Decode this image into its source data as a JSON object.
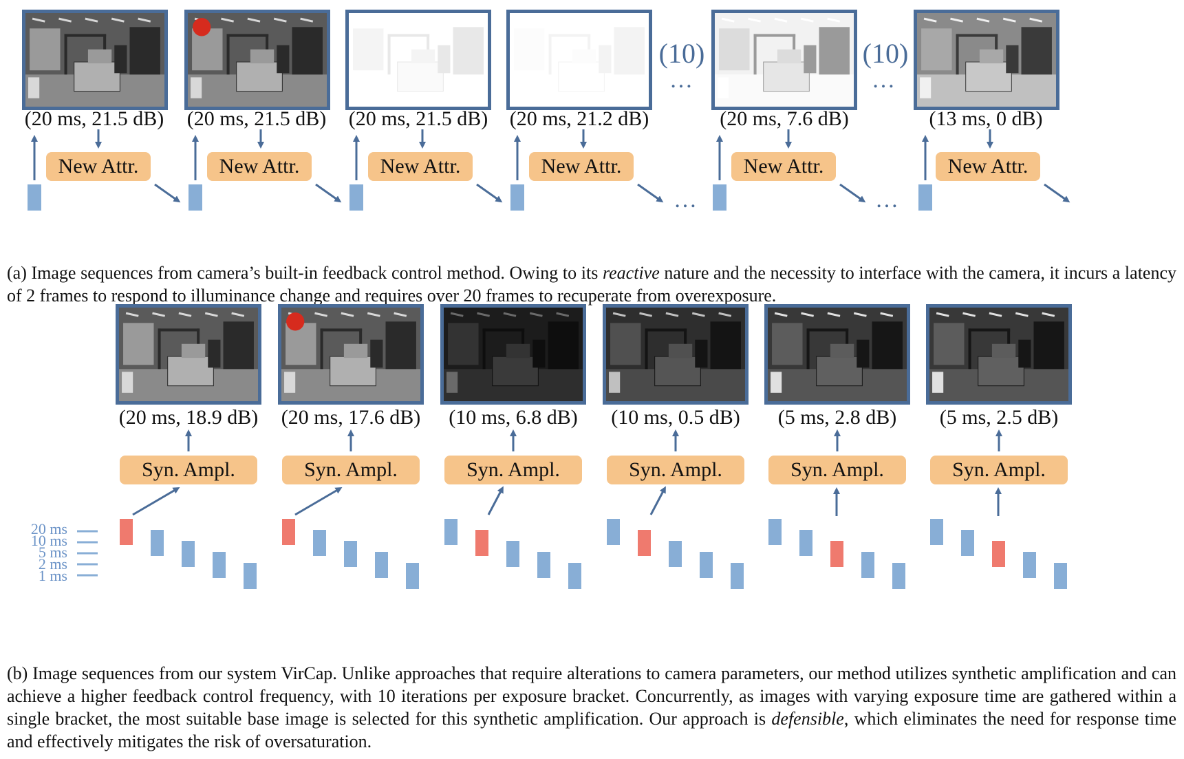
{
  "colors": {
    "frame_border": "#4a6c98",
    "arrow": "#4a6c98",
    "attr_box": "#f6c48a",
    "bar_blue": "#88aed6",
    "bar_red": "#ef7a6e",
    "red_dot": "#d62b1e"
  },
  "panel_a": {
    "frames": [
      {
        "label": "(20 ms, 21.5 dB)",
        "scene": "normal",
        "red_dot": false
      },
      {
        "label": "(20 ms, 21.5 dB)",
        "scene": "normal",
        "red_dot": true
      },
      {
        "label": "(20 ms, 21.5 dB)",
        "scene": "overexposed",
        "red_dot": false
      },
      {
        "label": "(20 ms, 21.2 dB)",
        "scene": "white",
        "red_dot": false
      },
      {
        "label": "(20 ms, 7.6 dB)",
        "scene": "overexposed-light",
        "red_dot": false
      },
      {
        "label": "(13 ms, 0 dB)",
        "scene": "bright",
        "red_dot": false
      }
    ],
    "box_label": "New Attr.",
    "gap_annotations": [
      "(10)",
      "(10)"
    ],
    "ellipsis": "…",
    "caption_prefix": "(a) Image sequences from camera’s built-in feedback control method. Owing to its ",
    "caption_emph": "reactive",
    "caption_suffix": " nature and the necessity to interface with the camera, it incurs a latency of 2 frames to respond to illuminance change and requires over 20 frames to recuperate from overexposure."
  },
  "panel_b": {
    "frames": [
      {
        "label": "(20 ms, 18.9 dB)",
        "scene": "normal",
        "red_dot": false,
        "selected_bar": 0
      },
      {
        "label": "(20 ms, 17.6 dB)",
        "scene": "normal",
        "red_dot": true,
        "selected_bar": 0
      },
      {
        "label": "(10 ms, 6.8 dB)",
        "scene": "dark",
        "red_dot": false,
        "selected_bar": 1
      },
      {
        "label": "(10 ms, 0.5 dB)",
        "scene": "dim",
        "red_dot": false,
        "selected_bar": 1
      },
      {
        "label": "(5 ms, 2.8 dB)",
        "scene": "dim2",
        "red_dot": false,
        "selected_bar": 2
      },
      {
        "label": "(5 ms, 2.5 dB)",
        "scene": "dim2",
        "red_dot": false,
        "selected_bar": 2
      }
    ],
    "box_label": "Syn. Ampl.",
    "exposure_levels": [
      "20 ms",
      "10 ms",
      "5 ms",
      "2 ms",
      "1 ms"
    ],
    "caption_part1": "(b) Image sequences from our system VirCap. Unlike approaches that require alterations to camera parameters, our method utilizes synthetic amplification and can achieve a higher feedback control frequency, with 10 iterations per exposure bracket. Concurrently, as images with varying exposure time are gathered within a single bracket, the most suitable base image is selected for this synthetic amplification. Our approach is ",
    "caption_emph": "defensible",
    "caption_part2": ", which eliminates the need for response time and effectively mitigates the risk of oversaturation."
  }
}
